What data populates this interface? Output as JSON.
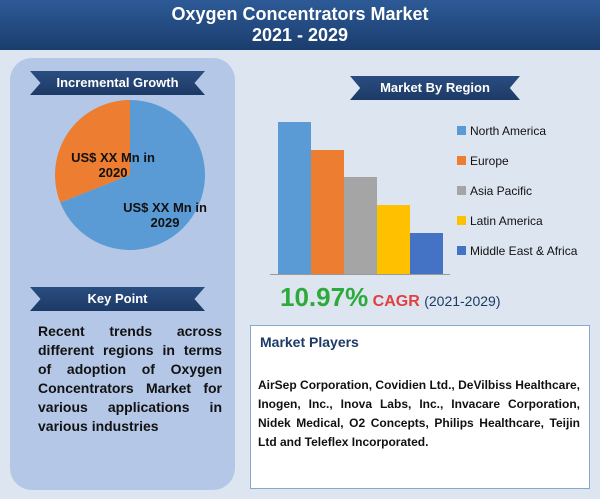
{
  "header": {
    "title_line1": "Oxygen Concentrators Market",
    "title_line2": "2021 - 2029"
  },
  "incremental_growth": {
    "heading": "Incremental Growth"
  },
  "key_point": {
    "heading": "Key Point",
    "text": "Recent trends across different regions in terms of adoption of Oxygen Concentrators Market for various applications in various industries"
  },
  "market_by_region": {
    "heading": "Market By Region"
  },
  "cagr": {
    "value_label": "10.97%",
    "label": "CAGR",
    "period": "(2021-2029)"
  },
  "market_players": {
    "heading": "Market Players",
    "text": "AirSep Corporation, Covidien Ltd., DeVilbiss Healthcare, Inogen, Inc., Inova Labs, Inc., Invacare Corporation, Nidek Medical, O2 Concepts, Philips Healthcare, Teijin Ltd and Teleflex Incorporated."
  },
  "chart_data": [
    {
      "type": "pie",
      "categories": [
        "US$ XX Mn in 2020",
        "US$ XX Mn in 2029"
      ],
      "values": [
        31,
        69
      ],
      "colors": [
        "#ed7d31",
        "#5b9bd5"
      ]
    },
    {
      "type": "bar",
      "categories": [
        "North America",
        "Europe",
        "Asia Pacific",
        "Latin America",
        "Middle East & Africa"
      ],
      "values": [
        152,
        124,
        97,
        69,
        41
      ],
      "colors": [
        "#5b9bd5",
        "#ed7d31",
        "#a5a5a5",
        "#ffc000",
        "#4472c4"
      ]
    }
  ]
}
